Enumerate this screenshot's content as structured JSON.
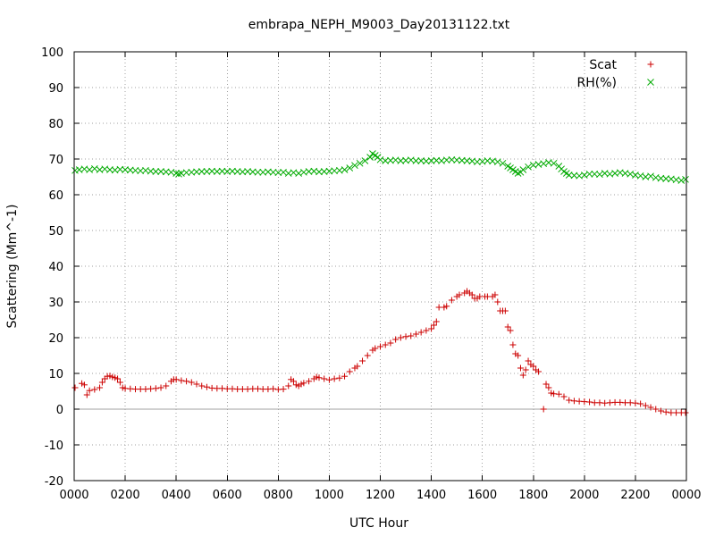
{
  "chart_data": {
    "type": "scatter",
    "title": "embrapa_NEPH_M9003_Day20131122.txt",
    "xlabel": "UTC Hour",
    "ylabel": "Scattering (Mm^-1)",
    "xlim": [
      0,
      2400
    ],
    "ylim": [
      -20,
      100
    ],
    "x_ticks": [
      "0000",
      "0200",
      "0400",
      "0600",
      "0800",
      "1000",
      "1200",
      "1400",
      "1600",
      "1800",
      "2000",
      "2200",
      "0000"
    ],
    "y_ticks": [
      "-20",
      "-10",
      "0",
      "10",
      "20",
      "30",
      "40",
      "50",
      "60",
      "70",
      "80",
      "90",
      "100"
    ],
    "grid": true,
    "zero_line": true,
    "legend_position": "top-right",
    "series": [
      {
        "name": "Scat",
        "marker": "plus",
        "color": "#cc0000",
        "points": [
          [
            0,
            6.0
          ],
          [
            30,
            7.2
          ],
          [
            40,
            6.8
          ],
          [
            50,
            4.0
          ],
          [
            60,
            5.2
          ],
          [
            80,
            5.5
          ],
          [
            100,
            6.0
          ],
          [
            110,
            7.5
          ],
          [
            120,
            8.5
          ],
          [
            130,
            9.2
          ],
          [
            140,
            9.3
          ],
          [
            150,
            9.0
          ],
          [
            160,
            8.8
          ],
          [
            170,
            8.5
          ],
          [
            180,
            7.5
          ],
          [
            190,
            6.0
          ],
          [
            200,
            5.8
          ],
          [
            220,
            5.7
          ],
          [
            240,
            5.6
          ],
          [
            260,
            5.6
          ],
          [
            280,
            5.6
          ],
          [
            300,
            5.7
          ],
          [
            320,
            5.8
          ],
          [
            340,
            6.0
          ],
          [
            360,
            6.5
          ],
          [
            380,
            7.8
          ],
          [
            390,
            8.3
          ],
          [
            400,
            8.3
          ],
          [
            420,
            8.0
          ],
          [
            440,
            7.8
          ],
          [
            460,
            7.5
          ],
          [
            480,
            7.0
          ],
          [
            500,
            6.5
          ],
          [
            520,
            6.2
          ],
          [
            540,
            5.9
          ],
          [
            560,
            5.8
          ],
          [
            580,
            5.8
          ],
          [
            600,
            5.7
          ],
          [
            620,
            5.7
          ],
          [
            640,
            5.6
          ],
          [
            660,
            5.6
          ],
          [
            680,
            5.6
          ],
          [
            700,
            5.7
          ],
          [
            720,
            5.7
          ],
          [
            740,
            5.6
          ],
          [
            760,
            5.6
          ],
          [
            780,
            5.7
          ],
          [
            800,
            5.5
          ],
          [
            820,
            5.6
          ],
          [
            840,
            6.5
          ],
          [
            850,
            8.3
          ],
          [
            860,
            7.8
          ],
          [
            870,
            6.8
          ],
          [
            880,
            6.5
          ],
          [
            890,
            7.0
          ],
          [
            900,
            7.3
          ],
          [
            920,
            7.8
          ],
          [
            940,
            8.5
          ],
          [
            950,
            9.0
          ],
          [
            960,
            8.8
          ],
          [
            980,
            8.5
          ],
          [
            1000,
            8.2
          ],
          [
            1020,
            8.5
          ],
          [
            1040,
            8.7
          ],
          [
            1060,
            9.2
          ],
          [
            1080,
            10.5
          ],
          [
            1100,
            11.5
          ],
          [
            1110,
            12.0
          ],
          [
            1130,
            13.5
          ],
          [
            1150,
            15.0
          ],
          [
            1170,
            16.5
          ],
          [
            1180,
            17.0
          ],
          [
            1200,
            17.5
          ],
          [
            1220,
            18.0
          ],
          [
            1240,
            18.5
          ],
          [
            1260,
            19.5
          ],
          [
            1280,
            20.0
          ],
          [
            1300,
            20.3
          ],
          [
            1320,
            20.5
          ],
          [
            1340,
            21.0
          ],
          [
            1360,
            21.5
          ],
          [
            1380,
            22.0
          ],
          [
            1400,
            22.5
          ],
          [
            1410,
            23.5
          ],
          [
            1420,
            24.5
          ],
          [
            1430,
            28.5
          ],
          [
            1450,
            28.5
          ],
          [
            1460,
            28.8
          ],
          [
            1480,
            30.5
          ],
          [
            1500,
            31.5
          ],
          [
            1510,
            32.0
          ],
          [
            1530,
            32.5
          ],
          [
            1540,
            33.0
          ],
          [
            1550,
            32.5
          ],
          [
            1560,
            32.0
          ],
          [
            1570,
            31.0
          ],
          [
            1580,
            31.0
          ],
          [
            1590,
            31.5
          ],
          [
            1610,
            31.5
          ],
          [
            1620,
            31.5
          ],
          [
            1640,
            31.5
          ],
          [
            1650,
            32.0
          ],
          [
            1660,
            30.0
          ],
          [
            1670,
            27.5
          ],
          [
            1680,
            27.5
          ],
          [
            1690,
            27.5
          ],
          [
            1700,
            23.0
          ],
          [
            1710,
            22.0
          ],
          [
            1720,
            18.0
          ],
          [
            1730,
            15.5
          ],
          [
            1740,
            15.0
          ],
          [
            1750,
            11.5
          ],
          [
            1760,
            9.5
          ],
          [
            1770,
            11.0
          ],
          [
            1780,
            13.5
          ],
          [
            1790,
            12.5
          ],
          [
            1800,
            12.0
          ],
          [
            1810,
            11.0
          ],
          [
            1820,
            10.5
          ],
          [
            1840,
            0.0
          ],
          [
            1850,
            7.0
          ],
          [
            1860,
            6.0
          ],
          [
            1870,
            4.5
          ],
          [
            1880,
            4.3
          ],
          [
            1900,
            4.2
          ],
          [
            1920,
            3.5
          ],
          [
            1940,
            2.5
          ],
          [
            1960,
            2.3
          ],
          [
            1980,
            2.2
          ],
          [
            2000,
            2.1
          ],
          [
            2020,
            2.0
          ],
          [
            2040,
            1.8
          ],
          [
            2060,
            1.8
          ],
          [
            2080,
            1.7
          ],
          [
            2100,
            1.8
          ],
          [
            2120,
            1.9
          ],
          [
            2140,
            1.9
          ],
          [
            2160,
            1.8
          ],
          [
            2180,
            1.8
          ],
          [
            2200,
            1.7
          ],
          [
            2220,
            1.5
          ],
          [
            2240,
            1.0
          ],
          [
            2260,
            0.5
          ],
          [
            2280,
            0.0
          ],
          [
            2300,
            -0.5
          ],
          [
            2320,
            -0.8
          ],
          [
            2340,
            -1.0
          ],
          [
            2360,
            -1.0
          ],
          [
            2380,
            -1.0
          ],
          [
            2400,
            -1.0
          ]
        ]
      },
      {
        "name": "RH(%)",
        "marker": "cross",
        "color": "#00aa00",
        "points": [
          [
            0,
            66.8
          ],
          [
            20,
            67.0
          ],
          [
            40,
            67.2
          ],
          [
            60,
            67.0
          ],
          [
            80,
            67.3
          ],
          [
            100,
            67.0
          ],
          [
            120,
            67.2
          ],
          [
            140,
            67.0
          ],
          [
            160,
            66.9
          ],
          [
            180,
            67.1
          ],
          [
            200,
            67.0
          ],
          [
            220,
            66.9
          ],
          [
            240,
            66.8
          ],
          [
            260,
            66.7
          ],
          [
            280,
            66.8
          ],
          [
            300,
            66.6
          ],
          [
            320,
            66.5
          ],
          [
            340,
            66.5
          ],
          [
            360,
            66.4
          ],
          [
            380,
            66.3
          ],
          [
            400,
            66.0
          ],
          [
            410,
            65.8
          ],
          [
            420,
            66.0
          ],
          [
            440,
            66.2
          ],
          [
            460,
            66.3
          ],
          [
            480,
            66.4
          ],
          [
            500,
            66.5
          ],
          [
            520,
            66.5
          ],
          [
            540,
            66.6
          ],
          [
            560,
            66.5
          ],
          [
            580,
            66.6
          ],
          [
            600,
            66.5
          ],
          [
            620,
            66.6
          ],
          [
            640,
            66.5
          ],
          [
            660,
            66.4
          ],
          [
            680,
            66.5
          ],
          [
            700,
            66.4
          ],
          [
            720,
            66.3
          ],
          [
            740,
            66.3
          ],
          [
            760,
            66.4
          ],
          [
            780,
            66.3
          ],
          [
            800,
            66.2
          ],
          [
            820,
            66.3
          ],
          [
            840,
            66.0
          ],
          [
            860,
            66.2
          ],
          [
            880,
            66.0
          ],
          [
            900,
            66.3
          ],
          [
            920,
            66.5
          ],
          [
            940,
            66.6
          ],
          [
            960,
            66.4
          ],
          [
            980,
            66.5
          ],
          [
            1000,
            66.6
          ],
          [
            1020,
            66.7
          ],
          [
            1040,
            66.8
          ],
          [
            1060,
            67.0
          ],
          [
            1080,
            67.5
          ],
          [
            1100,
            68.2
          ],
          [
            1120,
            68.8
          ],
          [
            1140,
            69.5
          ],
          [
            1160,
            70.5
          ],
          [
            1170,
            71.5
          ],
          [
            1180,
            71.0
          ],
          [
            1190,
            70.5
          ],
          [
            1200,
            69.8
          ],
          [
            1220,
            69.5
          ],
          [
            1240,
            69.6
          ],
          [
            1260,
            69.7
          ],
          [
            1280,
            69.5
          ],
          [
            1300,
            69.6
          ],
          [
            1320,
            69.7
          ],
          [
            1340,
            69.5
          ],
          [
            1360,
            69.5
          ],
          [
            1380,
            69.4
          ],
          [
            1400,
            69.5
          ],
          [
            1420,
            69.6
          ],
          [
            1440,
            69.5
          ],
          [
            1460,
            69.7
          ],
          [
            1480,
            69.8
          ],
          [
            1500,
            69.7
          ],
          [
            1520,
            69.6
          ],
          [
            1540,
            69.5
          ],
          [
            1560,
            69.4
          ],
          [
            1580,
            69.2
          ],
          [
            1600,
            69.3
          ],
          [
            1620,
            69.5
          ],
          [
            1640,
            69.4
          ],
          [
            1660,
            69.2
          ],
          [
            1680,
            68.8
          ],
          [
            1700,
            68.0
          ],
          [
            1710,
            67.5
          ],
          [
            1720,
            67.0
          ],
          [
            1730,
            66.5
          ],
          [
            1740,
            66.0
          ],
          [
            1750,
            66.3
          ],
          [
            1760,
            67.0
          ],
          [
            1780,
            67.8
          ],
          [
            1800,
            68.3
          ],
          [
            1820,
            68.5
          ],
          [
            1840,
            68.7
          ],
          [
            1860,
            69.0
          ],
          [
            1880,
            68.8
          ],
          [
            1900,
            68.0
          ],
          [
            1910,
            67.2
          ],
          [
            1920,
            66.5
          ],
          [
            1930,
            66.0
          ],
          [
            1940,
            65.5
          ],
          [
            1960,
            65.4
          ],
          [
            1980,
            65.3
          ],
          [
            2000,
            65.5
          ],
          [
            2020,
            65.8
          ],
          [
            2040,
            65.8
          ],
          [
            2060,
            65.7
          ],
          [
            2080,
            66.0
          ],
          [
            2100,
            65.8
          ],
          [
            2120,
            66.0
          ],
          [
            2140,
            66.2
          ],
          [
            2160,
            66.0
          ],
          [
            2180,
            65.8
          ],
          [
            2200,
            65.5
          ],
          [
            2220,
            65.3
          ],
          [
            2240,
            65.0
          ],
          [
            2260,
            65.2
          ],
          [
            2280,
            64.8
          ],
          [
            2300,
            64.6
          ],
          [
            2320,
            64.5
          ],
          [
            2340,
            64.4
          ],
          [
            2360,
            64.2
          ],
          [
            2380,
            64.0
          ],
          [
            2400,
            64.3
          ]
        ]
      }
    ]
  }
}
